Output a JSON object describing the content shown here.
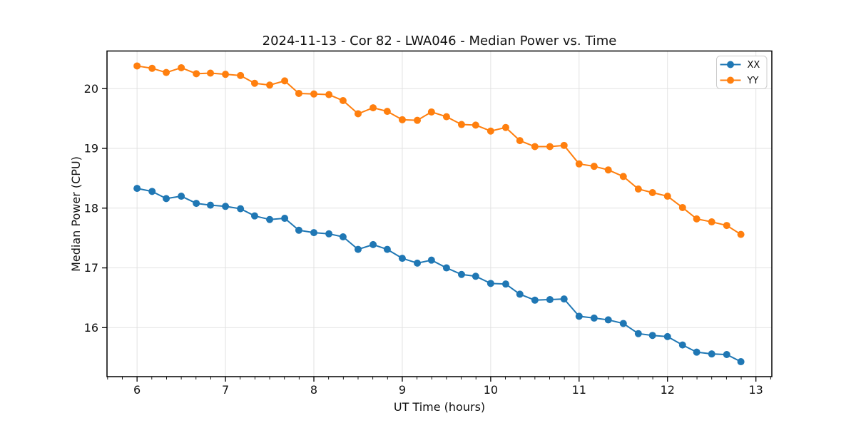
{
  "figure": {
    "background": "#ffffff"
  },
  "chart_data": {
    "type": "line",
    "title": "2024-11-13 - Cor 82 - LWA046 - Median Power vs. Time",
    "xlabel": "UT Time (hours)",
    "ylabel": "Median Power (CPU)",
    "x": [
      6.0,
      6.17,
      6.33,
      6.5,
      6.67,
      6.83,
      7.0,
      7.17,
      7.33,
      7.5,
      7.67,
      7.83,
      8.0,
      8.17,
      8.33,
      8.5,
      8.67,
      8.83,
      9.0,
      9.17,
      9.33,
      9.5,
      9.67,
      9.83,
      10.0,
      10.17,
      10.33,
      10.5,
      10.67,
      10.83,
      11.0,
      11.17,
      11.33,
      11.5,
      11.67,
      11.83,
      12.0,
      12.17,
      12.33,
      12.5,
      12.67,
      12.83
    ],
    "series": [
      {
        "name": "XX",
        "color": "#1f77b4",
        "marker": "circle",
        "values": [
          18.33,
          18.28,
          18.16,
          18.2,
          18.08,
          18.05,
          18.03,
          17.99,
          17.87,
          17.81,
          17.83,
          17.63,
          17.59,
          17.57,
          17.52,
          17.31,
          17.39,
          17.31,
          17.16,
          17.08,
          17.13,
          17.0,
          16.89,
          16.86,
          16.74,
          16.73,
          16.56,
          16.46,
          16.47,
          16.48,
          16.19,
          16.16,
          16.13,
          16.07,
          15.9,
          15.87,
          15.85,
          15.71,
          15.59,
          15.56,
          15.55,
          15.43
        ]
      },
      {
        "name": "YY",
        "color": "#ff7f0e",
        "marker": "circle",
        "values": [
          20.38,
          20.34,
          20.27,
          20.35,
          20.25,
          20.26,
          20.24,
          20.22,
          20.09,
          20.06,
          20.13,
          19.92,
          19.91,
          19.9,
          19.8,
          19.58,
          19.68,
          19.62,
          19.48,
          19.47,
          19.61,
          19.53,
          19.4,
          19.39,
          19.29,
          19.35,
          19.13,
          19.03,
          19.03,
          19.05,
          18.74,
          18.7,
          18.64,
          18.53,
          18.32,
          18.26,
          18.2,
          18.01,
          17.82,
          17.77,
          17.71,
          17.56
        ]
      }
    ],
    "xlim": [
      5.66,
      13.18
    ],
    "ylim": [
      15.18,
      20.63
    ],
    "xticks": [
      6,
      7,
      8,
      9,
      10,
      11,
      12,
      13
    ],
    "yticks": [
      16,
      17,
      18,
      19,
      20
    ],
    "minor_xticks_per_interval": 6,
    "grid": true,
    "grid_color": "#e2e2e2",
    "spine_color": "#000000",
    "tick_color": "#000000",
    "text_color": "#111111",
    "legend": {
      "position": "upper right",
      "entries": [
        "XX",
        "YY"
      ],
      "border_color": "#cccccc",
      "background": "#ffffff"
    }
  }
}
